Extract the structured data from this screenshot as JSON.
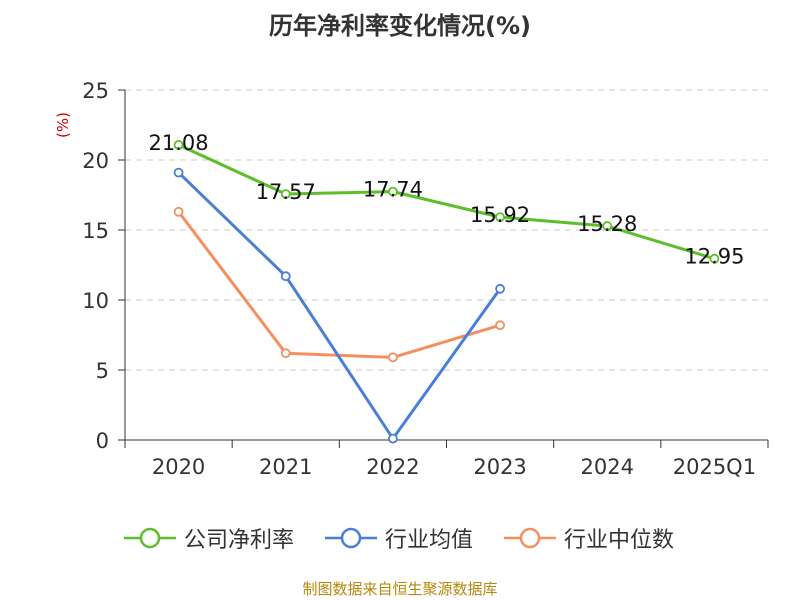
{
  "title": "历年净利率变化情况(%)",
  "source": "制图数据来自恒生聚源数据库",
  "colors": {
    "net_margin": "#5cbf2a",
    "industry_mean": "#4a7fd6",
    "industry_median": "#f58f5f",
    "ylabel": "#cc0000",
    "grid": "#c8c8c8",
    "axis": "#333333"
  },
  "chart_data": {
    "type": "line",
    "categories": [
      "2020",
      "2021",
      "2022",
      "2023",
      "2024",
      "2025Q1"
    ],
    "ylabel": "(%)",
    "ylim": [
      0,
      25
    ],
    "yticks": [
      0,
      5,
      10,
      15,
      20,
      25
    ],
    "grid": true,
    "legend_position": "bottom",
    "series": [
      {
        "name": "公司净利率",
        "color_key": "net_margin",
        "values": [
          21.08,
          17.57,
          17.74,
          15.92,
          15.28,
          12.95
        ],
        "show_labels": true
      },
      {
        "name": "行业均值",
        "color_key": "industry_mean",
        "values": [
          19.1,
          11.7,
          0.1,
          10.8,
          null,
          null
        ],
        "show_labels": false
      },
      {
        "name": "行业中位数",
        "color_key": "industry_median",
        "values": [
          16.3,
          6.2,
          5.9,
          8.2,
          null,
          null
        ],
        "show_labels": false
      }
    ],
    "data_labels": [
      "21.08",
      "17.57",
      "17.74",
      "15.92",
      "15.28",
      "12.95"
    ]
  }
}
